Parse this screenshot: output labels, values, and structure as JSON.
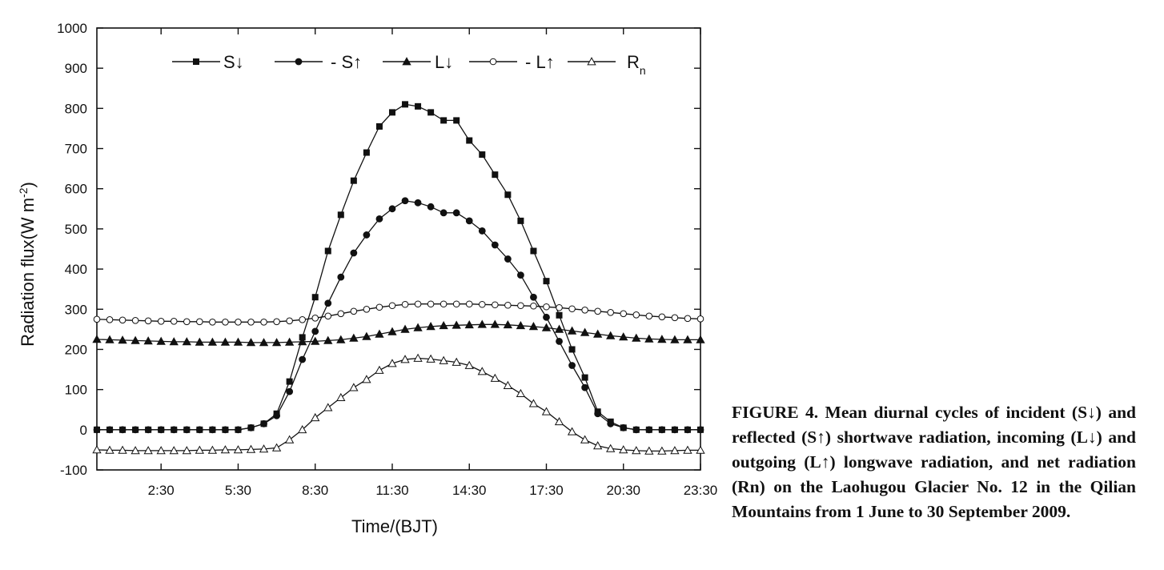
{
  "caption": "FIGURE 4. Mean diurnal cycles of incident (S↓) and reflected (S↑) shortwave radiation, incoming (L↓) and outgoing (L↑) longwave radiation, and net radiation (Rn) on the Laohugou Glacier No. 12 in the Qilian Mountains from 1 June to 30 September 2009.",
  "chart_data": {
    "type": "line",
    "xlabel": "Time/(BJT)",
    "ylabel": "Radiation flux(W m-2)",
    "ylim": [
      -100,
      1000
    ],
    "yticks": [
      -100,
      0,
      100,
      200,
      300,
      400,
      500,
      600,
      700,
      800,
      900,
      1000
    ],
    "xlim": [
      0,
      23.5
    ],
    "xticks": [
      "2:30",
      "5:30",
      "8:30",
      "11:30",
      "14:30",
      "17:30",
      "20:30",
      "23:30"
    ],
    "xtick_hours": [
      2.5,
      5.5,
      8.5,
      11.5,
      14.5,
      17.5,
      20.5,
      23.5
    ],
    "x_hours": [
      0.0,
      0.5,
      1.0,
      1.5,
      2.0,
      2.5,
      3.0,
      3.5,
      4.0,
      4.5,
      5.0,
      5.5,
      6.0,
      6.5,
      7.0,
      7.5,
      8.0,
      8.5,
      9.0,
      9.5,
      10.0,
      10.5,
      11.0,
      11.5,
      12.0,
      12.5,
      13.0,
      13.5,
      14.0,
      14.5,
      15.0,
      15.5,
      16.0,
      16.5,
      17.0,
      17.5,
      18.0,
      18.5,
      19.0,
      19.5,
      20.0,
      20.5,
      21.0,
      21.5,
      22.0,
      22.5,
      23.0,
      23.5
    ],
    "legend_position": "top",
    "grid": false,
    "series": [
      {
        "name": "S↓",
        "marker": "square-filled",
        "values": [
          0,
          0,
          0,
          0,
          0,
          0,
          0,
          0,
          0,
          0,
          0,
          0,
          5,
          15,
          40,
          120,
          230,
          330,
          445,
          535,
          620,
          690,
          755,
          790,
          810,
          805,
          790,
          770,
          770,
          720,
          685,
          635,
          585,
          520,
          445,
          370,
          285,
          200,
          130,
          45,
          20,
          5,
          0,
          0,
          0,
          0,
          0,
          0
        ]
      },
      {
        "name": "- S↑",
        "marker": "circle-filled",
        "values": [
          0,
          0,
          0,
          0,
          0,
          0,
          0,
          0,
          0,
          0,
          0,
          0,
          5,
          15,
          35,
          95,
          175,
          245,
          315,
          380,
          440,
          485,
          525,
          550,
          570,
          565,
          555,
          540,
          540,
          520,
          495,
          460,
          425,
          385,
          330,
          280,
          220,
          160,
          105,
          40,
          15,
          5,
          0,
          0,
          0,
          0,
          0,
          0
        ]
      },
      {
        "name": "L↓",
        "marker": "triangle-filled",
        "values": [
          225,
          224,
          223,
          222,
          221,
          220,
          219,
          219,
          218,
          218,
          218,
          218,
          217,
          217,
          217,
          218,
          219,
          220,
          222,
          224,
          228,
          232,
          238,
          244,
          250,
          254,
          257,
          259,
          260,
          261,
          262,
          262,
          261,
          259,
          257,
          254,
          250,
          246,
          242,
          238,
          234,
          231,
          228,
          226,
          225,
          224,
          224,
          224
        ]
      },
      {
        "name": "- L↑",
        "marker": "circle-open",
        "values": [
          275,
          274,
          273,
          272,
          271,
          270,
          270,
          269,
          269,
          268,
          268,
          268,
          268,
          268,
          269,
          271,
          274,
          278,
          283,
          289,
          295,
          300,
          305,
          309,
          312,
          313,
          313,
          313,
          313,
          313,
          312,
          311,
          310,
          309,
          308,
          306,
          304,
          301,
          298,
          295,
          292,
          289,
          286,
          283,
          281,
          279,
          277,
          276
        ]
      },
      {
        "name": "Rn",
        "name_sub": "n",
        "name_main": "R",
        "marker": "triangle-open",
        "values": [
          -50,
          -51,
          -51,
          -52,
          -52,
          -52,
          -52,
          -52,
          -51,
          -51,
          -50,
          -50,
          -49,
          -48,
          -45,
          -25,
          0,
          30,
          55,
          80,
          105,
          125,
          148,
          165,
          175,
          178,
          176,
          172,
          168,
          160,
          145,
          128,
          110,
          90,
          65,
          45,
          20,
          -5,
          -25,
          -40,
          -47,
          -50,
          -52,
          -53,
          -53,
          -52,
          -51,
          -51
        ]
      }
    ]
  }
}
